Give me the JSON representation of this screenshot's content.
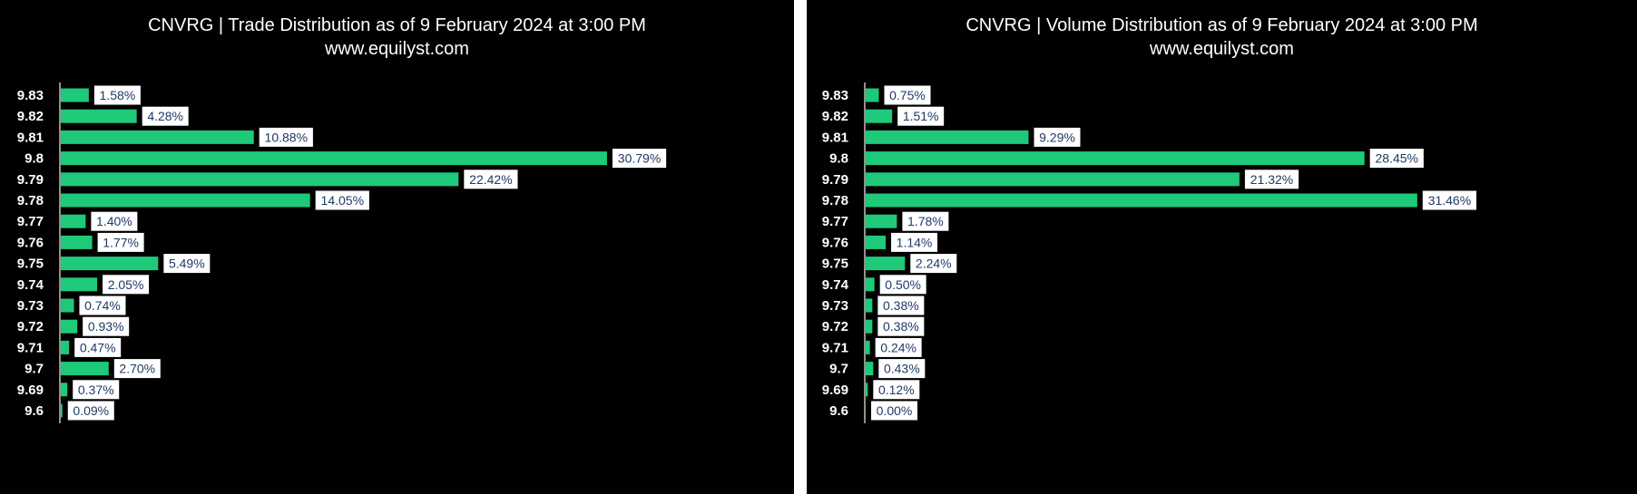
{
  "chart_data": [
    {
      "type": "bar",
      "orientation": "horizontal",
      "title": "CNVRG | Trade Distribution as of 9 February 2024 at 3:00 PM",
      "subtitle": "www.equilyst.com",
      "categories": [
        "9.83",
        "9.82",
        "9.81",
        "9.8",
        "9.79",
        "9.78",
        "9.77",
        "9.76",
        "9.75",
        "9.74",
        "9.73",
        "9.72",
        "9.71",
        "9.7",
        "9.69",
        "9.6"
      ],
      "values": [
        1.58,
        4.28,
        10.88,
        30.79,
        22.42,
        14.05,
        1.4,
        1.77,
        5.49,
        2.05,
        0.74,
        0.93,
        0.47,
        2.7,
        0.37,
        0.09
      ],
      "data_labels": [
        "1.58%",
        "4.28%",
        "10.88%",
        "30.79%",
        "22.42%",
        "14.05%",
        "1.40%",
        "1.77%",
        "5.49%",
        "2.05%",
        "0.74%",
        "0.93%",
        "0.47%",
        "2.70%",
        "0.37%",
        "0.09%"
      ],
      "xlabel": "",
      "ylabel": "",
      "grid": false,
      "legend": "none",
      "colors": {
        "bar": "#1fc97a",
        "background": "#000000",
        "text": "#ffffff",
        "label_box": "#ffffff",
        "label_text": "#1f3a64"
      }
    },
    {
      "type": "bar",
      "orientation": "horizontal",
      "title": "CNVRG | Volume Distribution as of 9 February 2024 at 3:00 PM",
      "subtitle": "www.equilyst.com",
      "categories": [
        "9.83",
        "9.82",
        "9.81",
        "9.8",
        "9.79",
        "9.78",
        "9.77",
        "9.76",
        "9.75",
        "9.74",
        "9.73",
        "9.72",
        "9.71",
        "9.7",
        "9.69",
        "9.6"
      ],
      "values": [
        0.75,
        1.51,
        9.29,
        28.45,
        21.32,
        31.46,
        1.78,
        1.14,
        2.24,
        0.5,
        0.38,
        0.38,
        0.24,
        0.43,
        0.12,
        0.0
      ],
      "data_labels": [
        "0.75%",
        "1.51%",
        "9.29%",
        "28.45%",
        "21.32%",
        "31.46%",
        "1.78%",
        "1.14%",
        "2.24%",
        "0.50%",
        "0.38%",
        "0.38%",
        "0.24%",
        "0.43%",
        "0.12%",
        "0.00%"
      ],
      "xlabel": "",
      "ylabel": "",
      "grid": false,
      "legend": "none",
      "colors": {
        "bar": "#1fc97a",
        "background": "#000000",
        "text": "#ffffff",
        "label_box": "#ffffff",
        "label_text": "#1f3a64"
      }
    }
  ]
}
